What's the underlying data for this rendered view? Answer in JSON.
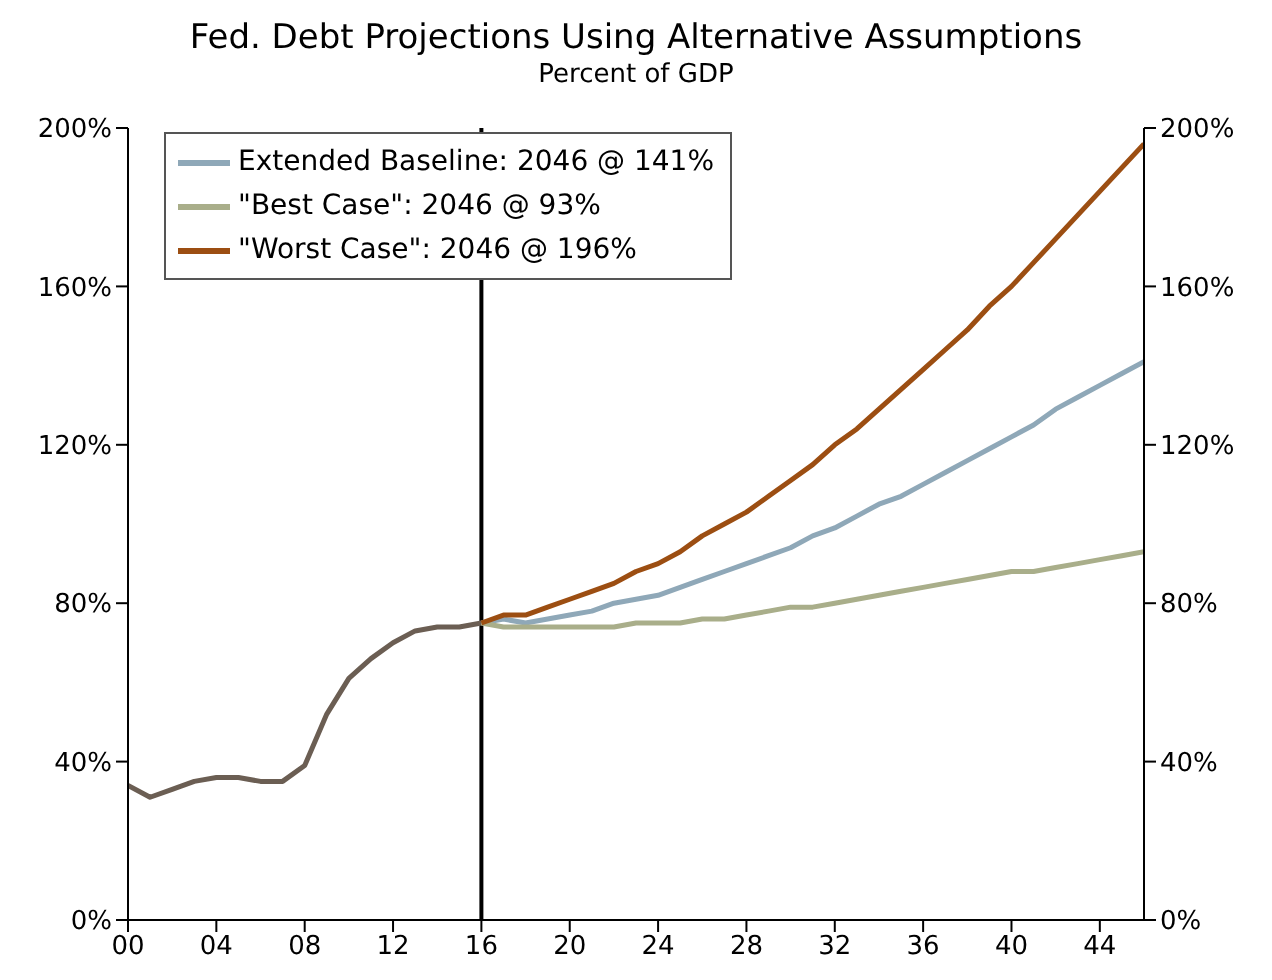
{
  "chart_data": {
    "type": "line",
    "title": "Fed. Debt Projections Using Alternative Assumptions",
    "subtitle": "Percent of GDP",
    "xlim": [
      0,
      46
    ],
    "xticks": [
      {
        "value": 0,
        "label": "00"
      },
      {
        "value": 4,
        "label": "04"
      },
      {
        "value": 8,
        "label": "08"
      },
      {
        "value": 12,
        "label": "12"
      },
      {
        "value": 16,
        "label": "16"
      },
      {
        "value": 20,
        "label": "20"
      },
      {
        "value": 24,
        "label": "24"
      },
      {
        "value": 28,
        "label": "28"
      },
      {
        "value": 32,
        "label": "32"
      },
      {
        "value": 36,
        "label": "36"
      },
      {
        "value": 40,
        "label": "40"
      },
      {
        "value": 44,
        "label": "44"
      }
    ],
    "ylim": [
      0,
      200
    ],
    "yticks": [
      {
        "value": 0,
        "label": "0%"
      },
      {
        "value": 40,
        "label": "40%"
      },
      {
        "value": 80,
        "label": "80%"
      },
      {
        "value": 120,
        "label": "120%"
      },
      {
        "value": 160,
        "label": "160%"
      },
      {
        "value": 200,
        "label": "200%"
      }
    ],
    "y2lim": [
      0,
      200
    ],
    "y2ticks": [
      {
        "value": 0,
        "label": "0%"
      },
      {
        "value": 40,
        "label": "40%"
      },
      {
        "value": 80,
        "label": "80%"
      },
      {
        "value": 120,
        "label": "120%"
      },
      {
        "value": 160,
        "label": "160%"
      },
      {
        "value": 200,
        "label": "200%"
      }
    ],
    "legend": "top left",
    "ref_lines": [
      {
        "axis": "x",
        "value": 16,
        "color": "#000000"
      }
    ],
    "series": [
      {
        "color": "#6b5e53",
        "x": [
          0,
          1,
          2,
          3,
          4,
          5,
          6,
          7,
          8,
          9,
          10,
          11,
          12,
          13,
          14,
          15,
          16
        ],
        "values": [
          34,
          31,
          33,
          35,
          36,
          36,
          35,
          35,
          39,
          52,
          61,
          66,
          70,
          73,
          74,
          74,
          75
        ]
      },
      {
        "name": "Extended Baseline: 2046 @ 141%",
        "color": "#8fa8b8",
        "x": [
          16,
          17,
          18,
          19,
          20,
          21,
          22,
          23,
          24,
          25,
          26,
          27,
          28,
          29,
          30,
          31,
          32,
          33,
          34,
          35,
          36,
          37,
          38,
          39,
          40,
          41,
          42,
          43,
          44,
          45,
          46
        ],
        "values": [
          75,
          76,
          75,
          76,
          77,
          78,
          80,
          81,
          82,
          84,
          86,
          88,
          90,
          92,
          94,
          97,
          99,
          102,
          105,
          107,
          110,
          113,
          116,
          119,
          122,
          125,
          129,
          132,
          135,
          138,
          141
        ]
      },
      {
        "name": "\"Best Case\": 2046 @ 93%",
        "color": "#a9ae8a",
        "x": [
          16,
          17,
          18,
          19,
          20,
          21,
          22,
          23,
          24,
          25,
          26,
          27,
          28,
          29,
          30,
          31,
          32,
          33,
          34,
          35,
          36,
          37,
          38,
          39,
          40,
          41,
          42,
          43,
          44,
          45,
          46
        ],
        "values": [
          75,
          74,
          74,
          74,
          74,
          74,
          74,
          75,
          75,
          75,
          76,
          76,
          77,
          78,
          79,
          79,
          80,
          81,
          82,
          83,
          84,
          85,
          86,
          87,
          88,
          88,
          89,
          90,
          91,
          92,
          93
        ]
      },
      {
        "name": "\"Worst Case\": 2046 @ 196%",
        "color": "#9c4e12",
        "x": [
          16,
          17,
          18,
          19,
          20,
          21,
          22,
          23,
          24,
          25,
          26,
          27,
          28,
          29,
          30,
          31,
          32,
          33,
          34,
          35,
          36,
          37,
          38,
          39,
          40,
          41,
          42,
          43,
          44,
          45,
          46
        ],
        "values": [
          75,
          77,
          77,
          79,
          81,
          83,
          85,
          88,
          90,
          93,
          97,
          100,
          103,
          107,
          111,
          115,
          120,
          124,
          129,
          134,
          139,
          144,
          149,
          155,
          160,
          166,
          172,
          178,
          184,
          190,
          196
        ]
      }
    ]
  }
}
